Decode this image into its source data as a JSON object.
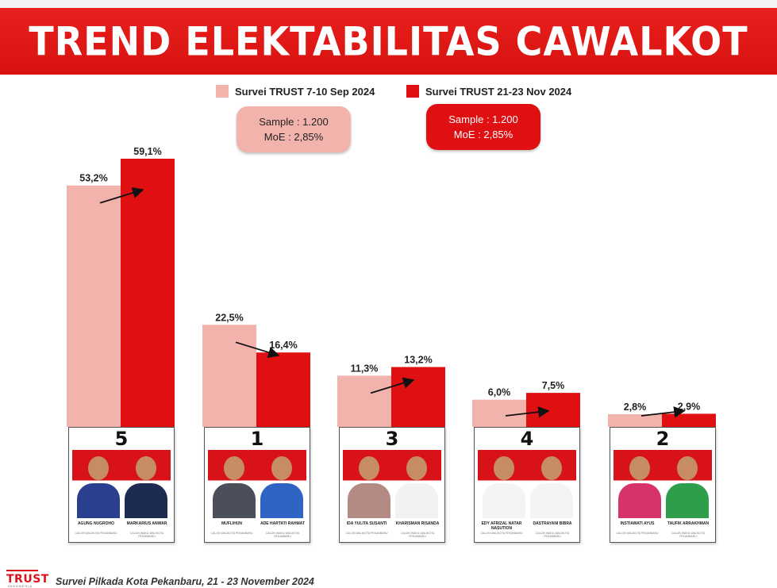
{
  "title": "TREND ELEKTABILITAS CAWALKOT",
  "legend": [
    {
      "label": "Survei TRUST 7-10 Sep 2024",
      "color": "#f2b3ac"
    },
    {
      "label": "Survei TRUST 21-23 Nov 2024",
      "color": "#e00f12"
    }
  ],
  "samples": [
    {
      "line1": "Sample : 1.200",
      "line2": "MoE : 2,85%"
    },
    {
      "line1": "Sample : 1.200",
      "line2": "MoE : 2,85%"
    }
  ],
  "chart_data": {
    "type": "bar",
    "categories": [
      "5",
      "1",
      "3",
      "4",
      "2"
    ],
    "series": [
      {
        "name": "Survei TRUST 7-10 Sep 2024",
        "color": "#f2b3ac",
        "values": [
          53.2,
          22.5,
          11.3,
          6.0,
          2.8
        ],
        "labels": [
          "53,2%",
          "22,5%",
          "11,3%",
          "6,0%",
          "2,8%"
        ]
      },
      {
        "name": "Survei TRUST 21-23 Nov 2024",
        "color": "#e00f12",
        "values": [
          59.1,
          16.4,
          13.2,
          7.5,
          2.9
        ],
        "labels": [
          "59,1%",
          "16,4%",
          "13,2%",
          "7,5%",
          "2,9%"
        ]
      }
    ],
    "title": "TREND ELEKTABILITAS CAWALKOT",
    "xlabel": "",
    "ylabel": "",
    "ylim": [
      0,
      60
    ],
    "grid": false,
    "legend_position": "top"
  },
  "candidates": [
    {
      "number": "5",
      "name1": "AGUNG NUGROHO",
      "role1": "CALON WALIKOTA PEKANBARU",
      "name2": "MARKARIUS ANWAR",
      "role2": "CALON WAKIL WALIKOTA PEKANBARU",
      "colors": [
        "#2b3f8f",
        "#1d2a52"
      ]
    },
    {
      "number": "1",
      "name1": "MUFLIHUN",
      "role1": "CALON WALIKOTA PEKANBARU",
      "name2": "ADE HARTATI RAHMAT",
      "role2": "CALON WAKIL WALIKOTA PEKANBARU",
      "colors": [
        "#4a4f5a",
        "#2f63c4"
      ]
    },
    {
      "number": "3",
      "name1": "IDA YULITA SUSANTI",
      "role1": "CALON WALIKOTA PEKANBARU",
      "name2": "KHARISMAN RISANDA",
      "role2": "CALON WAKIL WALIKOTA PEKANBARU",
      "colors": [
        "#b48a84",
        "#f2f2f2"
      ]
    },
    {
      "number": "4",
      "name1": "EDY AFRIZAL NATAR NASUTION",
      "role1": "CALON WALIKOTA PEKANBARU",
      "name2": "DASTRAYANI BIBRA",
      "role2": "CALON WAKIL WALIKOTA PEKANBARU",
      "colors": [
        "#f4f4f4",
        "#f4f4f4"
      ]
    },
    {
      "number": "2",
      "name1": "INSTIAWATI AYUS",
      "role1": "CALON WALIKOTA PEKANBARU",
      "name2": "TAUFIK ARRAKHMAN",
      "role2": "CALON WAKIL WALIKOTA PEKANBARU",
      "colors": [
        "#d6336c",
        "#2e9e4a"
      ]
    }
  ],
  "footer": {
    "logo": "TRUST",
    "logo_sub": "INDONESIA",
    "text": "Survei Pilkada Kota Pekanbaru, 21 - 23 November 2024"
  }
}
